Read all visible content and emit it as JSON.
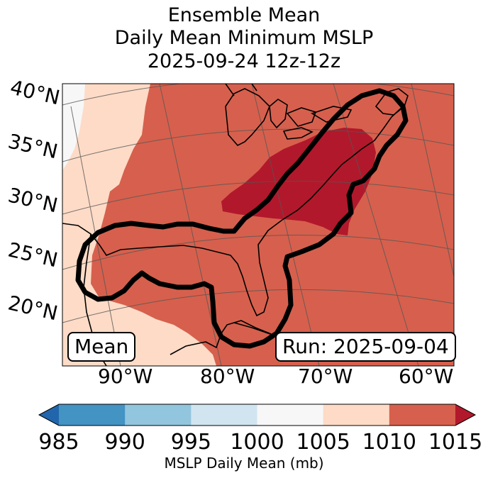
{
  "title": {
    "line1": "Ensemble Mean",
    "line2": "Daily Mean Minimum MSLP",
    "line3": "2025-09-24 12z-12z"
  },
  "map": {
    "latitude_labels": [
      "40°N",
      "35°N",
      "30°N",
      "25°N",
      "20°N"
    ],
    "longitude_labels": [
      "90°W",
      "80°W",
      "70°W",
      "60°W"
    ],
    "mean_box": "Mean",
    "run_box": "Run: 2025-09-04",
    "colors": {
      "lt1000": "#f7f7f7",
      "b1005_1010": "#fddbc7",
      "b1010_1015": "#d6604d",
      "gt1015": "#b2182b"
    }
  },
  "colorbar": {
    "ticks": [
      "985",
      "990",
      "995",
      "1000",
      "1005",
      "1010",
      "1015"
    ],
    "colors": [
      "#2166ac",
      "#4393c3",
      "#92c5de",
      "#d1e5f0",
      "#f7f7f7",
      "#fddbc7",
      "#d6604d",
      "#b2182b"
    ],
    "label": "MSLP Daily Mean (mb)"
  }
}
